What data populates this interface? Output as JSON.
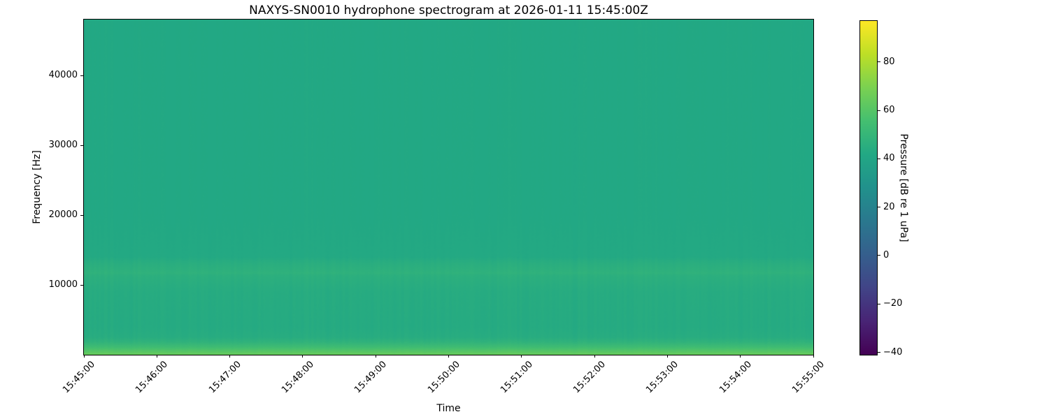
{
  "figure": {
    "title": "NAXYS-SN0010 hydrophone spectrogram at 2026-01-11 15:45:00Z",
    "xlabel": "Time",
    "ylabel": "Frequency [Hz]"
  },
  "chart_data": {
    "type": "heatmap",
    "title": "NAXYS-SN0010 hydrophone spectrogram at 2026-01-11 15:45:00Z",
    "xlabel": "Time",
    "ylabel": "Frequency [Hz]",
    "x_ticks": [
      "15:45:00",
      "15:46:00",
      "15:47:00",
      "15:48:00",
      "15:49:00",
      "15:50:00",
      "15:51:00",
      "15:52:00",
      "15:53:00",
      "15:54:00",
      "15:55:00"
    ],
    "x_tick_rotation_deg": 45,
    "y_ticks": [
      {
        "hz": 10000,
        "label": "10000"
      },
      {
        "hz": 20000,
        "label": "20000"
      },
      {
        "hz": 30000,
        "label": "30000"
      },
      {
        "hz": 40000,
        "label": "40000"
      }
    ],
    "y_range_hz": [
      0,
      48000
    ],
    "grid": false,
    "colorbar": {
      "label": "Pressure [dB re 1 uPa]",
      "ticks": [
        {
          "value": 80,
          "label": "80"
        },
        {
          "value": 60,
          "label": "60"
        },
        {
          "value": 40,
          "label": "40"
        },
        {
          "value": 20,
          "label": "20"
        },
        {
          "value": 0,
          "label": "0"
        },
        {
          "value": -20,
          "label": "−20"
        },
        {
          "value": -40,
          "label": "−40"
        }
      ],
      "range_db": [
        -41,
        97
      ],
      "colormap": "viridis",
      "colormap_stops": [
        [
          0.0,
          "#440154"
        ],
        [
          0.1,
          "#482475"
        ],
        [
          0.2,
          "#414487"
        ],
        [
          0.3,
          "#355f8d"
        ],
        [
          0.4,
          "#2a788e"
        ],
        [
          0.5,
          "#21918c"
        ],
        [
          0.6,
          "#22a884"
        ],
        [
          0.7,
          "#44bf70"
        ],
        [
          0.8,
          "#7ad151"
        ],
        [
          0.9,
          "#bddf26"
        ],
        [
          1.0,
          "#fde725"
        ]
      ]
    },
    "spectrogram_profile": {
      "description": "Mean received level vs frequency: nearly uniform ~42 dB teal field over 14-48 kHz, a slightly brighter band near 10.5-13.5 kHz peaking ~11.7 kHz, and strong broadband low-frequency energy below ~2 kHz rising toward ~65 dB at DC. Faint vertical striations (~1 dB) across all times.",
      "points_hz_db": [
        [
          0,
          65
        ],
        [
          300,
          62
        ],
        [
          700,
          58
        ],
        [
          1200,
          53
        ],
        [
          1800,
          48
        ],
        [
          2500,
          44.5
        ],
        [
          4000,
          43.5
        ],
        [
          9000,
          44
        ],
        [
          10200,
          45
        ],
        [
          11300,
          46
        ],
        [
          11700,
          47.5
        ],
        [
          12200,
          46.5
        ],
        [
          13200,
          45
        ],
        [
          14000,
          42.5
        ],
        [
          20000,
          42
        ],
        [
          48000,
          42
        ]
      ],
      "striation_db_amplitude": 1.2
    },
    "main_field_color": "#22a884",
    "time_span": {
      "start": "15:45:00",
      "end": "15:55:00"
    }
  }
}
